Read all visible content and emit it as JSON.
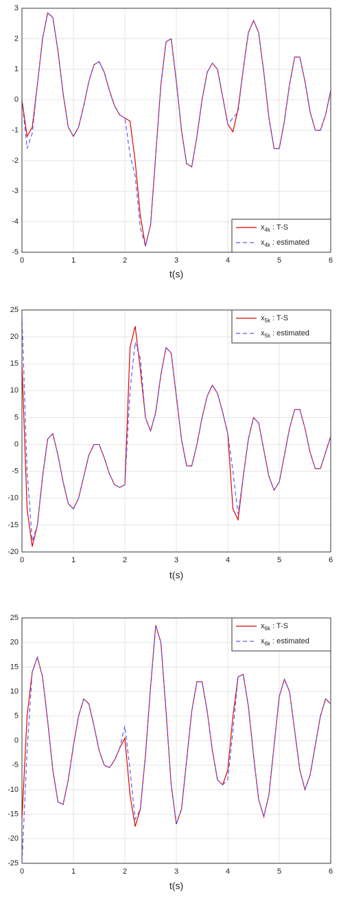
{
  "chart_data": [
    {
      "type": "line",
      "xlabel": "t(s)",
      "xlim": [
        0,
        6
      ],
      "ylim": [
        -5,
        3
      ],
      "xticks": [
        0,
        1,
        2,
        3,
        4,
        5,
        6
      ],
      "yticks": [
        -5,
        -4,
        -3,
        -2,
        -1,
        0,
        1,
        2,
        3
      ],
      "grid": true,
      "legend": "lower right",
      "x": [
        0,
        0.1,
        0.2,
        0.3,
        0.4,
        0.5,
        0.6,
        0.7,
        0.8,
        0.9,
        1,
        1.1,
        1.2,
        1.3,
        1.4,
        1.5,
        1.6,
        1.7,
        1.8,
        1.9,
        2,
        2.1,
        2.2,
        2.3,
        2.4,
        2.5,
        2.6,
        2.7,
        2.8,
        2.9,
        3,
        3.1,
        3.2,
        3.3,
        3.4,
        3.5,
        3.6,
        3.7,
        3.8,
        3.9,
        4,
        4.1,
        4.2,
        4.3,
        4.4,
        4.5,
        4.6,
        4.7,
        4.8,
        4.9,
        5,
        5.1,
        5.2,
        5.3,
        5.4,
        5.5,
        5.6,
        5.7,
        5.8,
        5.9,
        6
      ],
      "series": [
        {
          "name": "x4k : T-S",
          "color": "#e00000",
          "dash": false,
          "values": [
            0,
            -1.2,
            -0.9,
            0.5,
            2.0,
            2.85,
            2.7,
            1.6,
            0.2,
            -0.9,
            -1.2,
            -0.9,
            -0.2,
            0.6,
            1.15,
            1.25,
            0.9,
            0.3,
            -0.2,
            -0.5,
            -0.6,
            -0.7,
            -2.0,
            -3.8,
            -4.8,
            -4.1,
            -1.8,
            0.5,
            1.9,
            2.0,
            0.6,
            -1.0,
            -2.1,
            -2.2,
            -1.2,
            0.0,
            0.9,
            1.2,
            1.0,
            0.1,
            -0.8,
            -1.05,
            -0.3,
            1.0,
            2.2,
            2.6,
            2.2,
            0.9,
            -0.6,
            -1.6,
            -1.6,
            -0.7,
            0.5,
            1.4,
            1.4,
            0.6,
            -0.4,
            -1.0,
            -1.0,
            -0.5,
            0.3
          ]
        },
        {
          "name": "x4k : estimated",
          "color": "#5a5aff",
          "dash": true,
          "values": [
            0,
            -1.6,
            -1.1,
            0.5,
            2.0,
            2.85,
            2.7,
            1.6,
            0.2,
            -0.9,
            -1.2,
            -0.9,
            -0.2,
            0.6,
            1.15,
            1.25,
            0.9,
            0.3,
            -0.2,
            -0.5,
            -0.6,
            -1.8,
            -2.5,
            -4.2,
            -4.8,
            -4.1,
            -1.8,
            0.5,
            1.9,
            2.0,
            0.6,
            -1.0,
            -2.1,
            -2.2,
            -1.2,
            0.0,
            0.9,
            1.2,
            1.0,
            0.1,
            -0.8,
            -0.6,
            -0.4,
            1.0,
            2.2,
            2.6,
            2.2,
            0.9,
            -0.6,
            -1.6,
            -1.6,
            -0.7,
            0.5,
            1.4,
            1.4,
            0.6,
            -0.4,
            -1.0,
            -1.0,
            -0.5,
            0.3
          ]
        }
      ]
    },
    {
      "type": "line",
      "xlabel": "t(s)",
      "xlim": [
        0,
        6
      ],
      "ylim": [
        -20,
        25
      ],
      "xticks": [
        0,
        1,
        2,
        3,
        4,
        5,
        6
      ],
      "yticks": [
        -20,
        -15,
        -10,
        -5,
        0,
        5,
        10,
        15,
        20,
        25
      ],
      "grid": true,
      "legend": "upper right",
      "x": [
        0,
        0.1,
        0.2,
        0.3,
        0.4,
        0.5,
        0.6,
        0.7,
        0.8,
        0.9,
        1,
        1.1,
        1.2,
        1.3,
        1.4,
        1.5,
        1.6,
        1.7,
        1.8,
        1.9,
        2,
        2.1,
        2.2,
        2.3,
        2.4,
        2.5,
        2.6,
        2.7,
        2.8,
        2.9,
        3,
        3.1,
        3.2,
        3.3,
        3.4,
        3.5,
        3.6,
        3.7,
        3.8,
        3.9,
        4,
        4.1,
        4.2,
        4.3,
        4.4,
        4.5,
        4.6,
        4.7,
        4.8,
        4.9,
        5,
        5.1,
        5.2,
        5.3,
        5.4,
        5.5,
        5.6,
        5.7,
        5.8,
        5.9,
        6
      ],
      "series": [
        {
          "name": "x5k : T-S",
          "color": "#e00000",
          "dash": false,
          "values": [
            15,
            -12,
            -19,
            -15,
            -6,
            1,
            2,
            -2,
            -7,
            -11,
            -12,
            -10,
            -6,
            -2,
            0,
            0,
            -2.5,
            -5.5,
            -7.5,
            -8,
            -7.5,
            18,
            22,
            14,
            5,
            2.5,
            6,
            13,
            18,
            17,
            9,
            1,
            -4,
            -4,
            0,
            5,
            9,
            11,
            9.5,
            6,
            2,
            -12,
            -14,
            -6,
            1,
            5,
            4,
            -1,
            -6,
            -8.5,
            -7,
            -2,
            3,
            6.5,
            6.5,
            3,
            -1.5,
            -4.5,
            -4.5,
            -1.5,
            1.5
          ]
        },
        {
          "name": "x5k : estimated",
          "color": "#5a5aff",
          "dash": true,
          "values": [
            24,
            -5,
            -18,
            -15,
            -6,
            1,
            2,
            -2,
            -7,
            -11,
            -12,
            -10,
            -6,
            -2,
            0,
            0,
            -2.5,
            -5.5,
            -7.5,
            -8,
            -7.5,
            10,
            19,
            16,
            5,
            2.5,
            6,
            13,
            18,
            17,
            9,
            1,
            -4,
            -4,
            0,
            5,
            9,
            11,
            9.5,
            6,
            2,
            -5,
            -13,
            -6,
            1,
            5,
            4,
            -1,
            -6,
            -8.5,
            -7,
            -2,
            3,
            6.5,
            6.5,
            3,
            -1.5,
            -4.5,
            -4.5,
            -1.5,
            1.5
          ]
        }
      ]
    },
    {
      "type": "line",
      "xlabel": "t(s)",
      "xlim": [
        0,
        6
      ],
      "ylim": [
        -25,
        25
      ],
      "xticks": [
        0,
        1,
        2,
        3,
        4,
        5,
        6
      ],
      "yticks": [
        -25,
        -20,
        -15,
        -10,
        -5,
        0,
        5,
        10,
        15,
        20,
        25
      ],
      "grid": true,
      "legend": "upper right",
      "x": [
        0,
        0.1,
        0.2,
        0.3,
        0.4,
        0.5,
        0.6,
        0.7,
        0.8,
        0.9,
        1,
        1.1,
        1.2,
        1.3,
        1.4,
        1.5,
        1.6,
        1.7,
        1.8,
        1.9,
        2,
        2.1,
        2.2,
        2.3,
        2.4,
        2.5,
        2.6,
        2.7,
        2.8,
        2.9,
        3,
        3.1,
        3.2,
        3.3,
        3.4,
        3.5,
        3.6,
        3.7,
        3.8,
        3.9,
        4,
        4.1,
        4.2,
        4.3,
        4.4,
        4.5,
        4.6,
        4.7,
        4.8,
        4.9,
        5,
        5.1,
        5.2,
        5.3,
        5.4,
        5.5,
        5.6,
        5.7,
        5.8,
        5.9,
        6
      ],
      "series": [
        {
          "name": "x6k : T-S",
          "color": "#e00000",
          "dash": false,
          "values": [
            -16,
            5,
            14,
            17,
            13,
            4,
            -6,
            -12.5,
            -13,
            -8,
            -1,
            5,
            8.5,
            7.5,
            3,
            -2,
            -5,
            -5.5,
            -4,
            -1.5,
            0.5,
            -11,
            -17.5,
            -14,
            -3,
            11,
            23.5,
            20,
            6,
            -9,
            -17,
            -14,
            -4,
            6,
            12,
            12,
            6,
            -2,
            -8,
            -9,
            -6,
            5,
            13,
            13.5,
            7,
            -3,
            -12,
            -15.5,
            -11,
            -1,
            9,
            12.5,
            10,
            2,
            -6,
            -10,
            -7,
            -1,
            5,
            8.5,
            7.5
          ]
        },
        {
          "name": "x6k : estimated",
          "color": "#5a5aff",
          "dash": true,
          "values": [
            -25,
            -2,
            14,
            17,
            13,
            4,
            -6,
            -12.5,
            -13,
            -8,
            -1,
            5,
            8.5,
            7.5,
            3,
            -2,
            -5,
            -5.5,
            -4,
            -1.5,
            3,
            -6,
            -16,
            -14,
            -3,
            11,
            23.5,
            20,
            6,
            -9,
            -17,
            -14,
            -4,
            6,
            12,
            12,
            6,
            -2,
            -8,
            -9,
            -8,
            2,
            13,
            13.5,
            7,
            -3,
            -12,
            -15.5,
            -11,
            -1,
            9,
            12.5,
            10,
            2,
            -6,
            -10,
            -7,
            -1,
            5,
            8.5,
            7.5
          ]
        }
      ]
    }
  ]
}
